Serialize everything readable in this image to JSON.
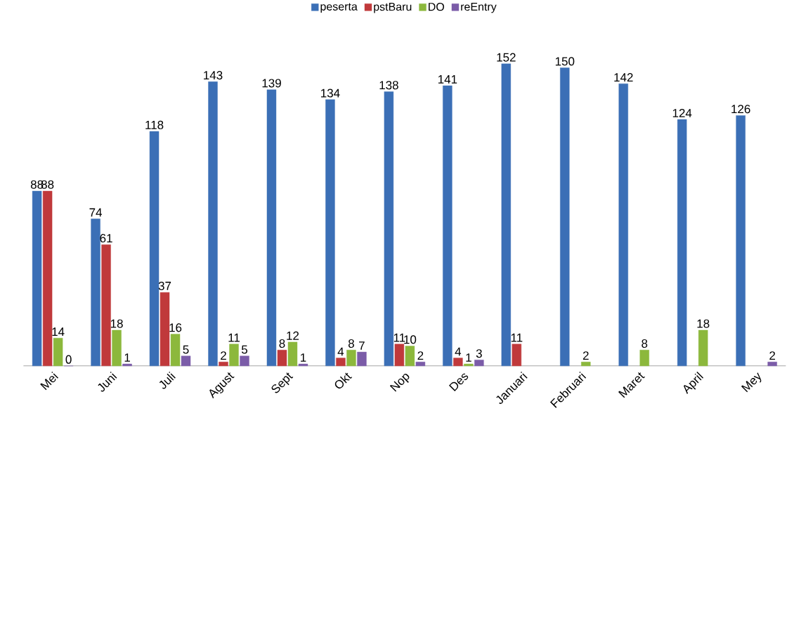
{
  "chart_data": {
    "type": "bar",
    "categories": [
      "Mei",
      "Juni",
      "Juli",
      "Agust",
      "Sept",
      "Okt",
      "Nop",
      "Des",
      "Januari",
      "Februari",
      "Maret",
      "April",
      "Mey"
    ],
    "series": [
      {
        "name": "peserta",
        "color": "#3b6fb6",
        "values": [
          88,
          74,
          118,
          143,
          139,
          134,
          138,
          141,
          152,
          150,
          142,
          124,
          126
        ]
      },
      {
        "name": "pstBaru",
        "color": "#c0393b",
        "values": [
          88,
          61,
          37,
          2,
          8,
          4,
          11,
          4,
          11,
          null,
          null,
          null,
          null
        ]
      },
      {
        "name": "DO",
        "color": "#8cb83c",
        "values": [
          14,
          18,
          16,
          11,
          12,
          8,
          10,
          1,
          null,
          2,
          8,
          18,
          null
        ]
      },
      {
        "name": "reEntry",
        "color": "#7b5ca8",
        "values": [
          0,
          1,
          5,
          5,
          1,
          7,
          2,
          3,
          null,
          null,
          null,
          null,
          2
        ]
      }
    ],
    "data_labels": true,
    "legend": "top"
  }
}
